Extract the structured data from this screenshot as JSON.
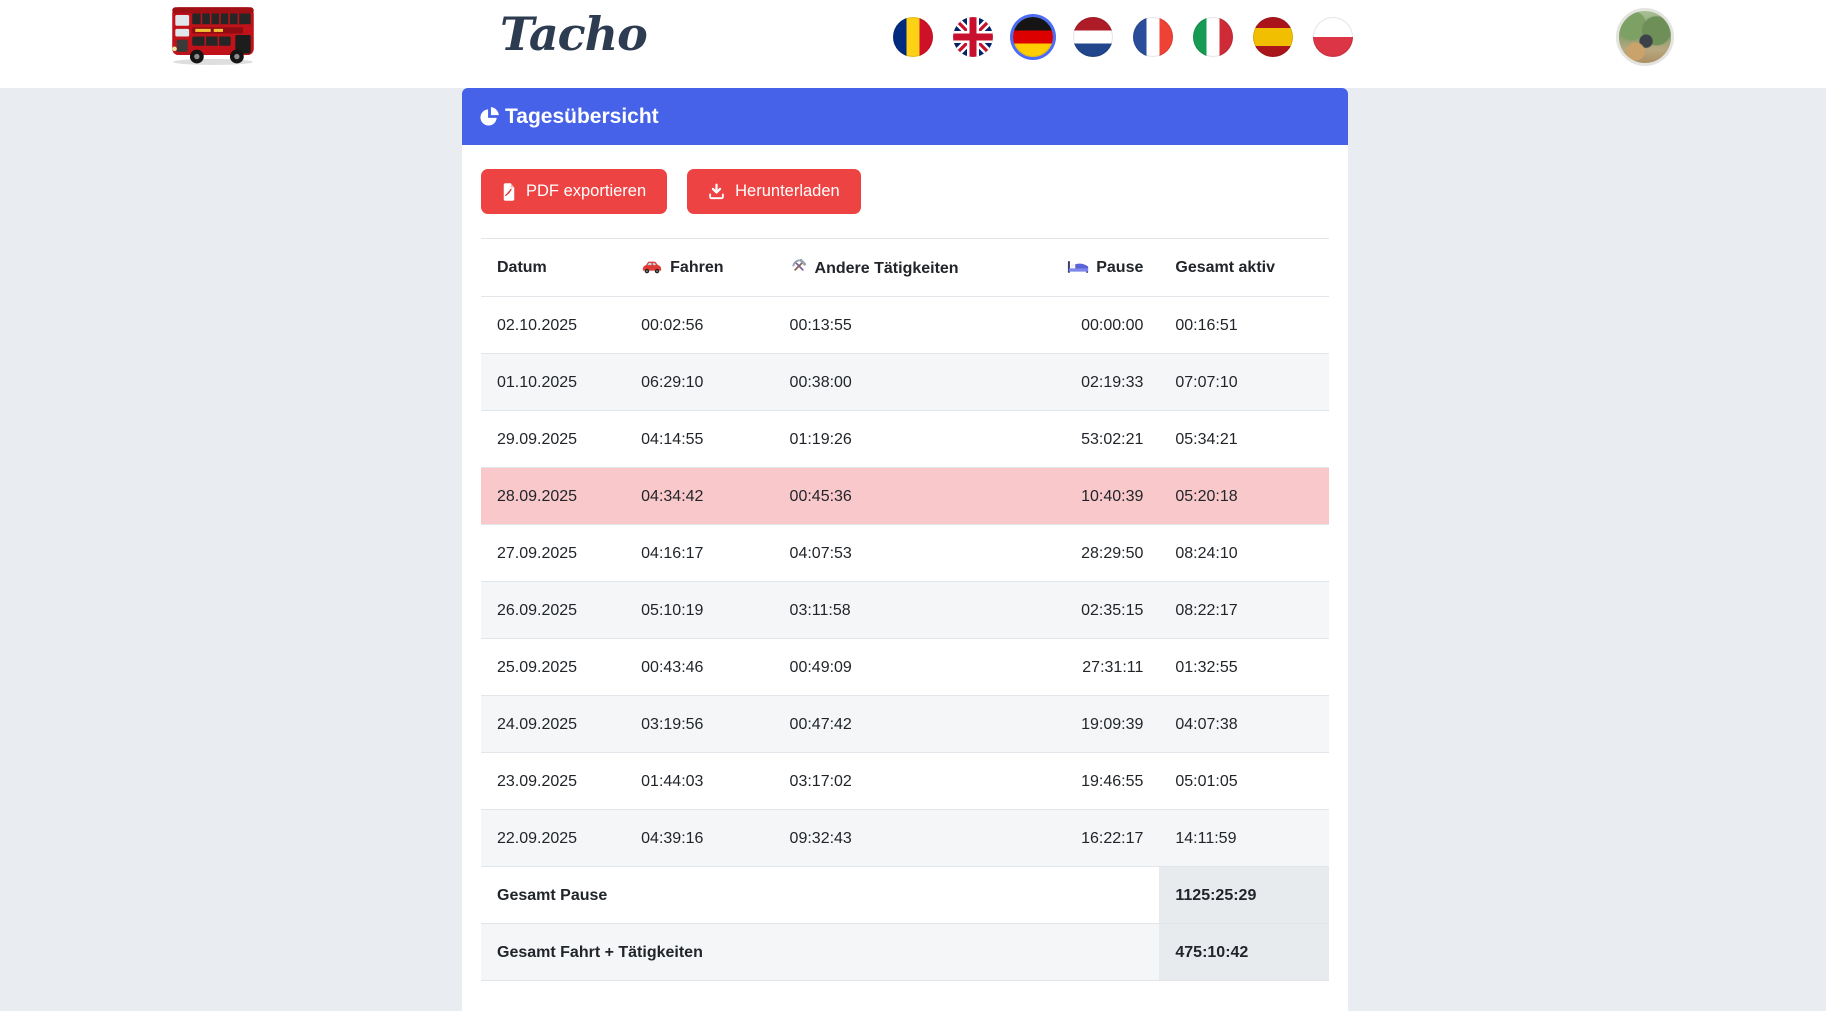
{
  "colors": {
    "primary_blue": "#4562e9",
    "danger_red": "#ee4343",
    "highlight_pink": "#f9c8ca",
    "stripe_gray": "#f5f6f8",
    "total_cell_gray": "#e8ebee",
    "page_background": "#e9edf2",
    "brand_text": "#2e3c52"
  },
  "header": {
    "brand": "Tacho",
    "logo_icon": "london-double-decker-bus",
    "avatar_icon": "user-photo-motorcycle-outdoors",
    "languages": [
      {
        "icon": "flag-romania",
        "selected": false
      },
      {
        "icon": "flag-united-kingdom",
        "selected": false
      },
      {
        "icon": "flag-germany",
        "selected": true
      },
      {
        "icon": "flag-netherlands",
        "selected": false
      },
      {
        "icon": "flag-france",
        "selected": false
      },
      {
        "icon": "flag-italy",
        "selected": false
      },
      {
        "icon": "flag-spain",
        "selected": false
      },
      {
        "icon": "flag-poland",
        "selected": false
      }
    ]
  },
  "panel": {
    "title": "Tagesübersicht",
    "title_icon": "pie-chart-icon",
    "buttons": [
      {
        "label": "PDF exportieren",
        "icon": "pdf-file-icon"
      },
      {
        "label": "Herunterladen",
        "icon": "download-icon"
      }
    ]
  },
  "table": {
    "columns": [
      {
        "label": "Datum",
        "icon": null
      },
      {
        "label": "Fahren",
        "icon": "car-icon"
      },
      {
        "label": "Andere Tätigkeiten",
        "icon": "tools-icon"
      },
      {
        "label": "Pause",
        "icon": "bed-icon"
      },
      {
        "label": "Gesamt aktiv",
        "icon": null
      }
    ],
    "rows": [
      {
        "datum": "02.10.2025",
        "fahren": "00:02:56",
        "andere_taetigkeiten": "00:13:55",
        "pause": "00:00:00",
        "gesamt_aktiv": "00:16:51",
        "highlight": false
      },
      {
        "datum": "01.10.2025",
        "fahren": "06:29:10",
        "andere_taetigkeiten": "00:38:00",
        "pause": "02:19:33",
        "gesamt_aktiv": "07:07:10",
        "highlight": false
      },
      {
        "datum": "29.09.2025",
        "fahren": "04:14:55",
        "andere_taetigkeiten": "01:19:26",
        "pause": "53:02:21",
        "gesamt_aktiv": "05:34:21",
        "highlight": false
      },
      {
        "datum": "28.09.2025",
        "fahren": "04:34:42",
        "andere_taetigkeiten": "00:45:36",
        "pause": "10:40:39",
        "gesamt_aktiv": "05:20:18",
        "highlight": true
      },
      {
        "datum": "27.09.2025",
        "fahren": "04:16:17",
        "andere_taetigkeiten": "04:07:53",
        "pause": "28:29:50",
        "gesamt_aktiv": "08:24:10",
        "highlight": false
      },
      {
        "datum": "26.09.2025",
        "fahren": "05:10:19",
        "andere_taetigkeiten": "03:11:58",
        "pause": "02:35:15",
        "gesamt_aktiv": "08:22:17",
        "highlight": false
      },
      {
        "datum": "25.09.2025",
        "fahren": "00:43:46",
        "andere_taetigkeiten": "00:49:09",
        "pause": "27:31:11",
        "gesamt_aktiv": "01:32:55",
        "highlight": false
      },
      {
        "datum": "24.09.2025",
        "fahren": "03:19:56",
        "andere_taetigkeiten": "00:47:42",
        "pause": "19:09:39",
        "gesamt_aktiv": "04:07:38",
        "highlight": false
      },
      {
        "datum": "23.09.2025",
        "fahren": "01:44:03",
        "andere_taetigkeiten": "03:17:02",
        "pause": "19:46:55",
        "gesamt_aktiv": "05:01:05",
        "highlight": false
      },
      {
        "datum": "22.09.2025",
        "fahren": "04:39:16",
        "andere_taetigkeiten": "09:32:43",
        "pause": "16:22:17",
        "gesamt_aktiv": "14:11:59",
        "highlight": false
      }
    ],
    "totals": [
      {
        "label": "Gesamt Pause",
        "value": "1125:25:29"
      },
      {
        "label": "Gesamt Fahrt + Tätigkeiten",
        "value": "475:10:42"
      }
    ]
  }
}
